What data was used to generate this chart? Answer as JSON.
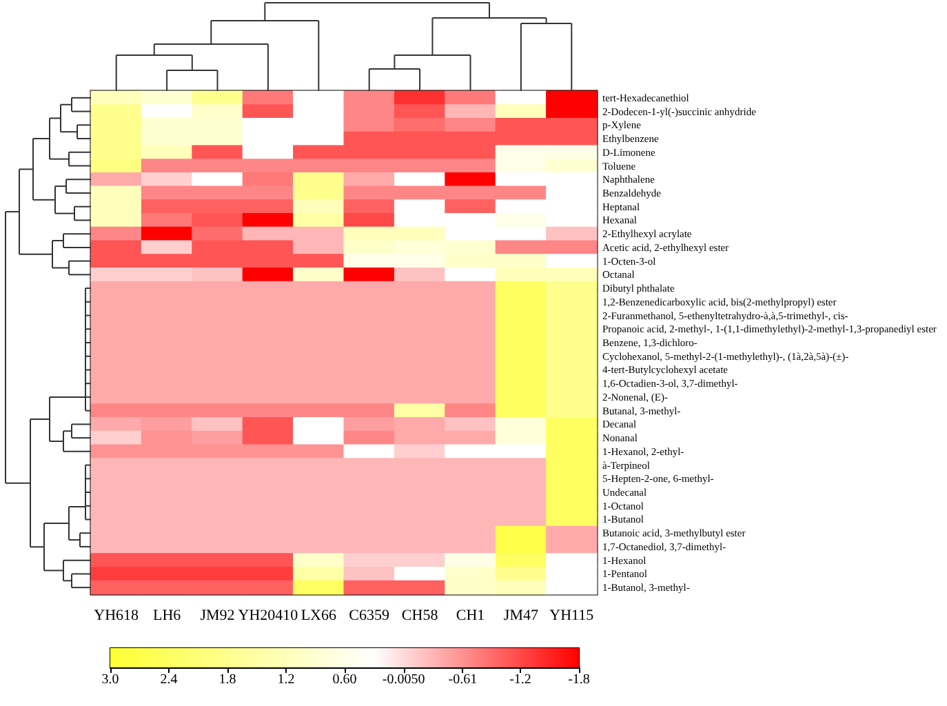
{
  "chart_data": {
    "type": "heatmap",
    "categories": [
      "YH618",
      "LH6",
      "JM92",
      "YH20410",
      "LX66",
      "C6359",
      "CH58",
      "CH1",
      "JM47",
      "YH115"
    ],
    "y_categories": [
      "tert-Hexadecanethiol",
      "2-Dodecen-1-yl(-)succinic anhydride",
      "p-Xylene",
      "Ethylbenzene",
      "D-Limonene",
      "Toluene",
      "Naphthalene",
      "Benzaldehyde",
      "Heptanal",
      "Hexanal",
      "2-Ethylhexyl acrylate",
      "Acetic acid, 2-ethylhexyl ester",
      "1-Octen-3-ol",
      "Octanal",
      "Dibutyl phthalate",
      "1,2-Benzenedicarboxylic acid, bis(2-methylpropyl) ester",
      "2-Furanmethanol, 5-ethenyltetrahydro-à,à,5-trimethyl-, cis-",
      "Propanoic acid, 2-methyl-, 1-(1,1-dimethylethyl)-2-methyl-1,3-propanediyl ester",
      "Benzene, 1,3-dichloro-",
      "Cyclohexanol, 5-methyl-2-(1-methylethyl)-, (1à,2à,5à)-(±)-",
      "4-tert-Butylcyclohexyl acetate",
      "1,6-Octadien-3-ol, 3,7-dimethyl-",
      "2-Nonenal, (E)-",
      "Butanal, 3-methyl-",
      "Decanal",
      "Nonanal",
      "1-Hexanol, 2-ethyl-",
      "à-Terpineol",
      "5-Hepten-2-one, 6-methyl-",
      "Undecanal",
      "1-Octanol",
      "1-Butanol",
      "Butanoic acid, 3-methylbutyl ester",
      "1,7-Octanediol, 3,7-dimethyl-",
      "1-Hexanol",
      "1-Pentanol",
      "1-Butanol, 3-methyl-"
    ],
    "cells": [
      [
        1.2,
        0.9,
        1.8,
        -0.8,
        0.3,
        -0.7,
        -1.4,
        -0.8,
        0.3,
        -1.8
      ],
      [
        1.8,
        0.3,
        1.0,
        -1.1,
        0.3,
        -0.7,
        -1.1,
        -0.3,
        1.2,
        -1.8
      ],
      [
        1.8,
        0.9,
        0.9,
        0.3,
        0.3,
        -0.7,
        -0.9,
        -0.7,
        -1.1,
        -1.1
      ],
      [
        1.8,
        0.9,
        0.9,
        0.3,
        0.3,
        -1.1,
        -1.1,
        -1.1,
        -1.1,
        -1.1
      ],
      [
        1.8,
        1.2,
        -1.1,
        0.3,
        -1.1,
        -1.1,
        -1.1,
        -1.1,
        0.6,
        0.6
      ],
      [
        2.0,
        -0.7,
        -0.7,
        -0.7,
        -0.7,
        -0.7,
        -0.7,
        -0.7,
        0.6,
        0.9
      ],
      [
        -0.4,
        -0.1,
        0.3,
        -0.8,
        1.8,
        -0.4,
        0.3,
        -1.8,
        0.3,
        0.3
      ],
      [
        1.2,
        -0.7,
        -0.7,
        -0.7,
        1.8,
        -0.7,
        -0.7,
        -0.7,
        -0.7,
        0.3
      ],
      [
        1.2,
        -1.0,
        -1.0,
        -1.0,
        1.2,
        -1.0,
        0.3,
        -1.0,
        0.3,
        0.3
      ],
      [
        1.2,
        -0.8,
        -1.1,
        -1.8,
        1.5,
        -1.2,
        0.3,
        0.3,
        0.6,
        0.3
      ],
      [
        -0.7,
        -1.8,
        -0.9,
        -0.3,
        -0.3,
        1.2,
        1.2,
        0.3,
        0.3,
        -0.2
      ],
      [
        -1.1,
        -0.1,
        -1.1,
        -1.1,
        -0.3,
        1.0,
        0.8,
        0.9,
        -0.7,
        -0.7
      ],
      [
        -1.1,
        -1.1,
        -1.1,
        -1.1,
        -1.1,
        0.6,
        0.6,
        1.0,
        1.0,
        0.3
      ],
      [
        -0.1,
        -0.1,
        -0.2,
        -1.8,
        1.0,
        -1.8,
        -0.2,
        0.3,
        1.2,
        1.2
      ],
      [
        -0.4,
        -0.4,
        -0.4,
        -0.4,
        -0.4,
        -0.4,
        -0.4,
        -0.4,
        2.4,
        1.8
      ],
      [
        -0.4,
        -0.4,
        -0.4,
        -0.4,
        -0.4,
        -0.4,
        -0.4,
        -0.4,
        2.4,
        1.8
      ],
      [
        -0.4,
        -0.4,
        -0.4,
        -0.4,
        -0.4,
        -0.4,
        -0.4,
        -0.4,
        2.4,
        1.8
      ],
      [
        -0.4,
        -0.4,
        -0.4,
        -0.4,
        -0.4,
        -0.4,
        -0.4,
        -0.4,
        2.4,
        1.8
      ],
      [
        -0.4,
        -0.4,
        -0.4,
        -0.4,
        -0.4,
        -0.4,
        -0.4,
        -0.4,
        2.4,
        1.8
      ],
      [
        -0.4,
        -0.4,
        -0.4,
        -0.4,
        -0.4,
        -0.4,
        -0.4,
        -0.4,
        2.4,
        1.8
      ],
      [
        -0.4,
        -0.4,
        -0.4,
        -0.4,
        -0.4,
        -0.4,
        -0.4,
        -0.4,
        2.4,
        1.8
      ],
      [
        -0.4,
        -0.4,
        -0.4,
        -0.4,
        -0.4,
        -0.4,
        -0.4,
        -0.4,
        2.4,
        1.8
      ],
      [
        -0.4,
        -0.4,
        -0.4,
        -0.4,
        -0.4,
        -0.4,
        -0.4,
        -0.4,
        2.4,
        1.8
      ],
      [
        -0.7,
        -0.7,
        -0.7,
        -0.7,
        -0.7,
        -0.7,
        1.5,
        -0.7,
        2.4,
        1.8
      ],
      [
        -0.4,
        -0.5,
        -0.2,
        -1.1,
        0.3,
        -0.5,
        -0.4,
        -0.2,
        0.8,
        2.4
      ],
      [
        -0.1,
        -0.6,
        -0.5,
        -1.1,
        0.3,
        -0.7,
        -0.4,
        -0.4,
        0.8,
        2.4
      ],
      [
        -0.6,
        -0.6,
        -0.6,
        -0.6,
        -0.6,
        0.3,
        -0.1,
        0.3,
        0.3,
        2.4
      ],
      [
        -0.3,
        -0.3,
        -0.3,
        -0.3,
        -0.3,
        -0.3,
        -0.3,
        -0.3,
        -0.3,
        2.4
      ],
      [
        -0.3,
        -0.3,
        -0.3,
        -0.3,
        -0.3,
        -0.3,
        -0.3,
        -0.3,
        -0.3,
        2.4
      ],
      [
        -0.3,
        -0.3,
        -0.3,
        -0.3,
        -0.3,
        -0.3,
        -0.3,
        -0.3,
        -0.3,
        2.4
      ],
      [
        -0.3,
        -0.3,
        -0.3,
        -0.3,
        -0.3,
        -0.3,
        -0.3,
        -0.3,
        -0.3,
        2.4
      ],
      [
        -0.3,
        -0.3,
        -0.3,
        -0.3,
        -0.3,
        -0.3,
        -0.3,
        -0.3,
        -0.3,
        2.4
      ],
      [
        -0.3,
        -0.3,
        -0.3,
        -0.3,
        -0.3,
        -0.3,
        -0.3,
        -0.3,
        2.7,
        -0.4
      ],
      [
        -0.3,
        -0.3,
        -0.3,
        -0.3,
        -0.3,
        -0.3,
        -0.3,
        -0.3,
        2.7,
        -0.4
      ],
      [
        -1.1,
        -1.1,
        -1.1,
        -1.1,
        1.0,
        -0.1,
        -0.1,
        0.6,
        2.4,
        0.3
      ],
      [
        -1.3,
        -1.3,
        -1.3,
        -1.3,
        1.5,
        -0.2,
        0.3,
        1.0,
        1.8,
        0.3
      ],
      [
        -1.0,
        -1.0,
        -1.0,
        -1.0,
        2.4,
        -1.0,
        -1.0,
        1.0,
        1.2,
        0.3
      ]
    ],
    "clim": [
      3.0,
      -1.8
    ],
    "cticks": [
      {
        "value": 3.0,
        "label": "3.0"
      },
      {
        "value": 2.4,
        "label": "2.4"
      },
      {
        "value": 1.8,
        "label": "1.8"
      },
      {
        "value": 1.2,
        "label": "1.2"
      },
      {
        "value": 0.6,
        "label": "0.60"
      },
      {
        "value": -0.005,
        "label": "-0.0050"
      },
      {
        "value": -0.61,
        "label": "-0.61"
      },
      {
        "value": -1.2,
        "label": "-1.2"
      },
      {
        "value": -1.8,
        "label": "-1.8"
      }
    ]
  }
}
